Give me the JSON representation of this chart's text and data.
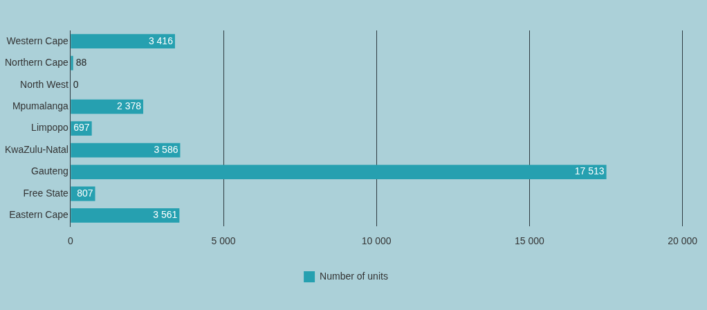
{
  "chart_data": {
    "type": "bar",
    "orientation": "horizontal",
    "categories": [
      "Western Cape",
      "Northern Cape",
      "North West",
      "Mpumalanga",
      "Limpopo",
      "KwaZulu-Natal",
      "Gauteng",
      "Free State",
      "Eastern Cape"
    ],
    "series": [
      {
        "name": "Number of units",
        "color": "#26a0b0",
        "values": [
          3416,
          88,
          0,
          2378,
          697,
          3586,
          17513,
          807,
          3561
        ],
        "value_labels": [
          "3 416",
          "88",
          "0",
          "2 378",
          "697",
          "3 586",
          "17 513",
          "807",
          "3 561"
        ]
      }
    ],
    "xlim": [
      0,
      20000
    ],
    "xticks": [
      0,
      {
        "value": 5000,
        "label": "5 000"
      },
      {
        "value": 10000,
        "label": "10 000"
      },
      {
        "value": 15000,
        "label": "15 000"
      },
      {
        "value": 20000,
        "label": "20 000"
      }
    ],
    "grid": "x",
    "legend": "bottom"
  }
}
